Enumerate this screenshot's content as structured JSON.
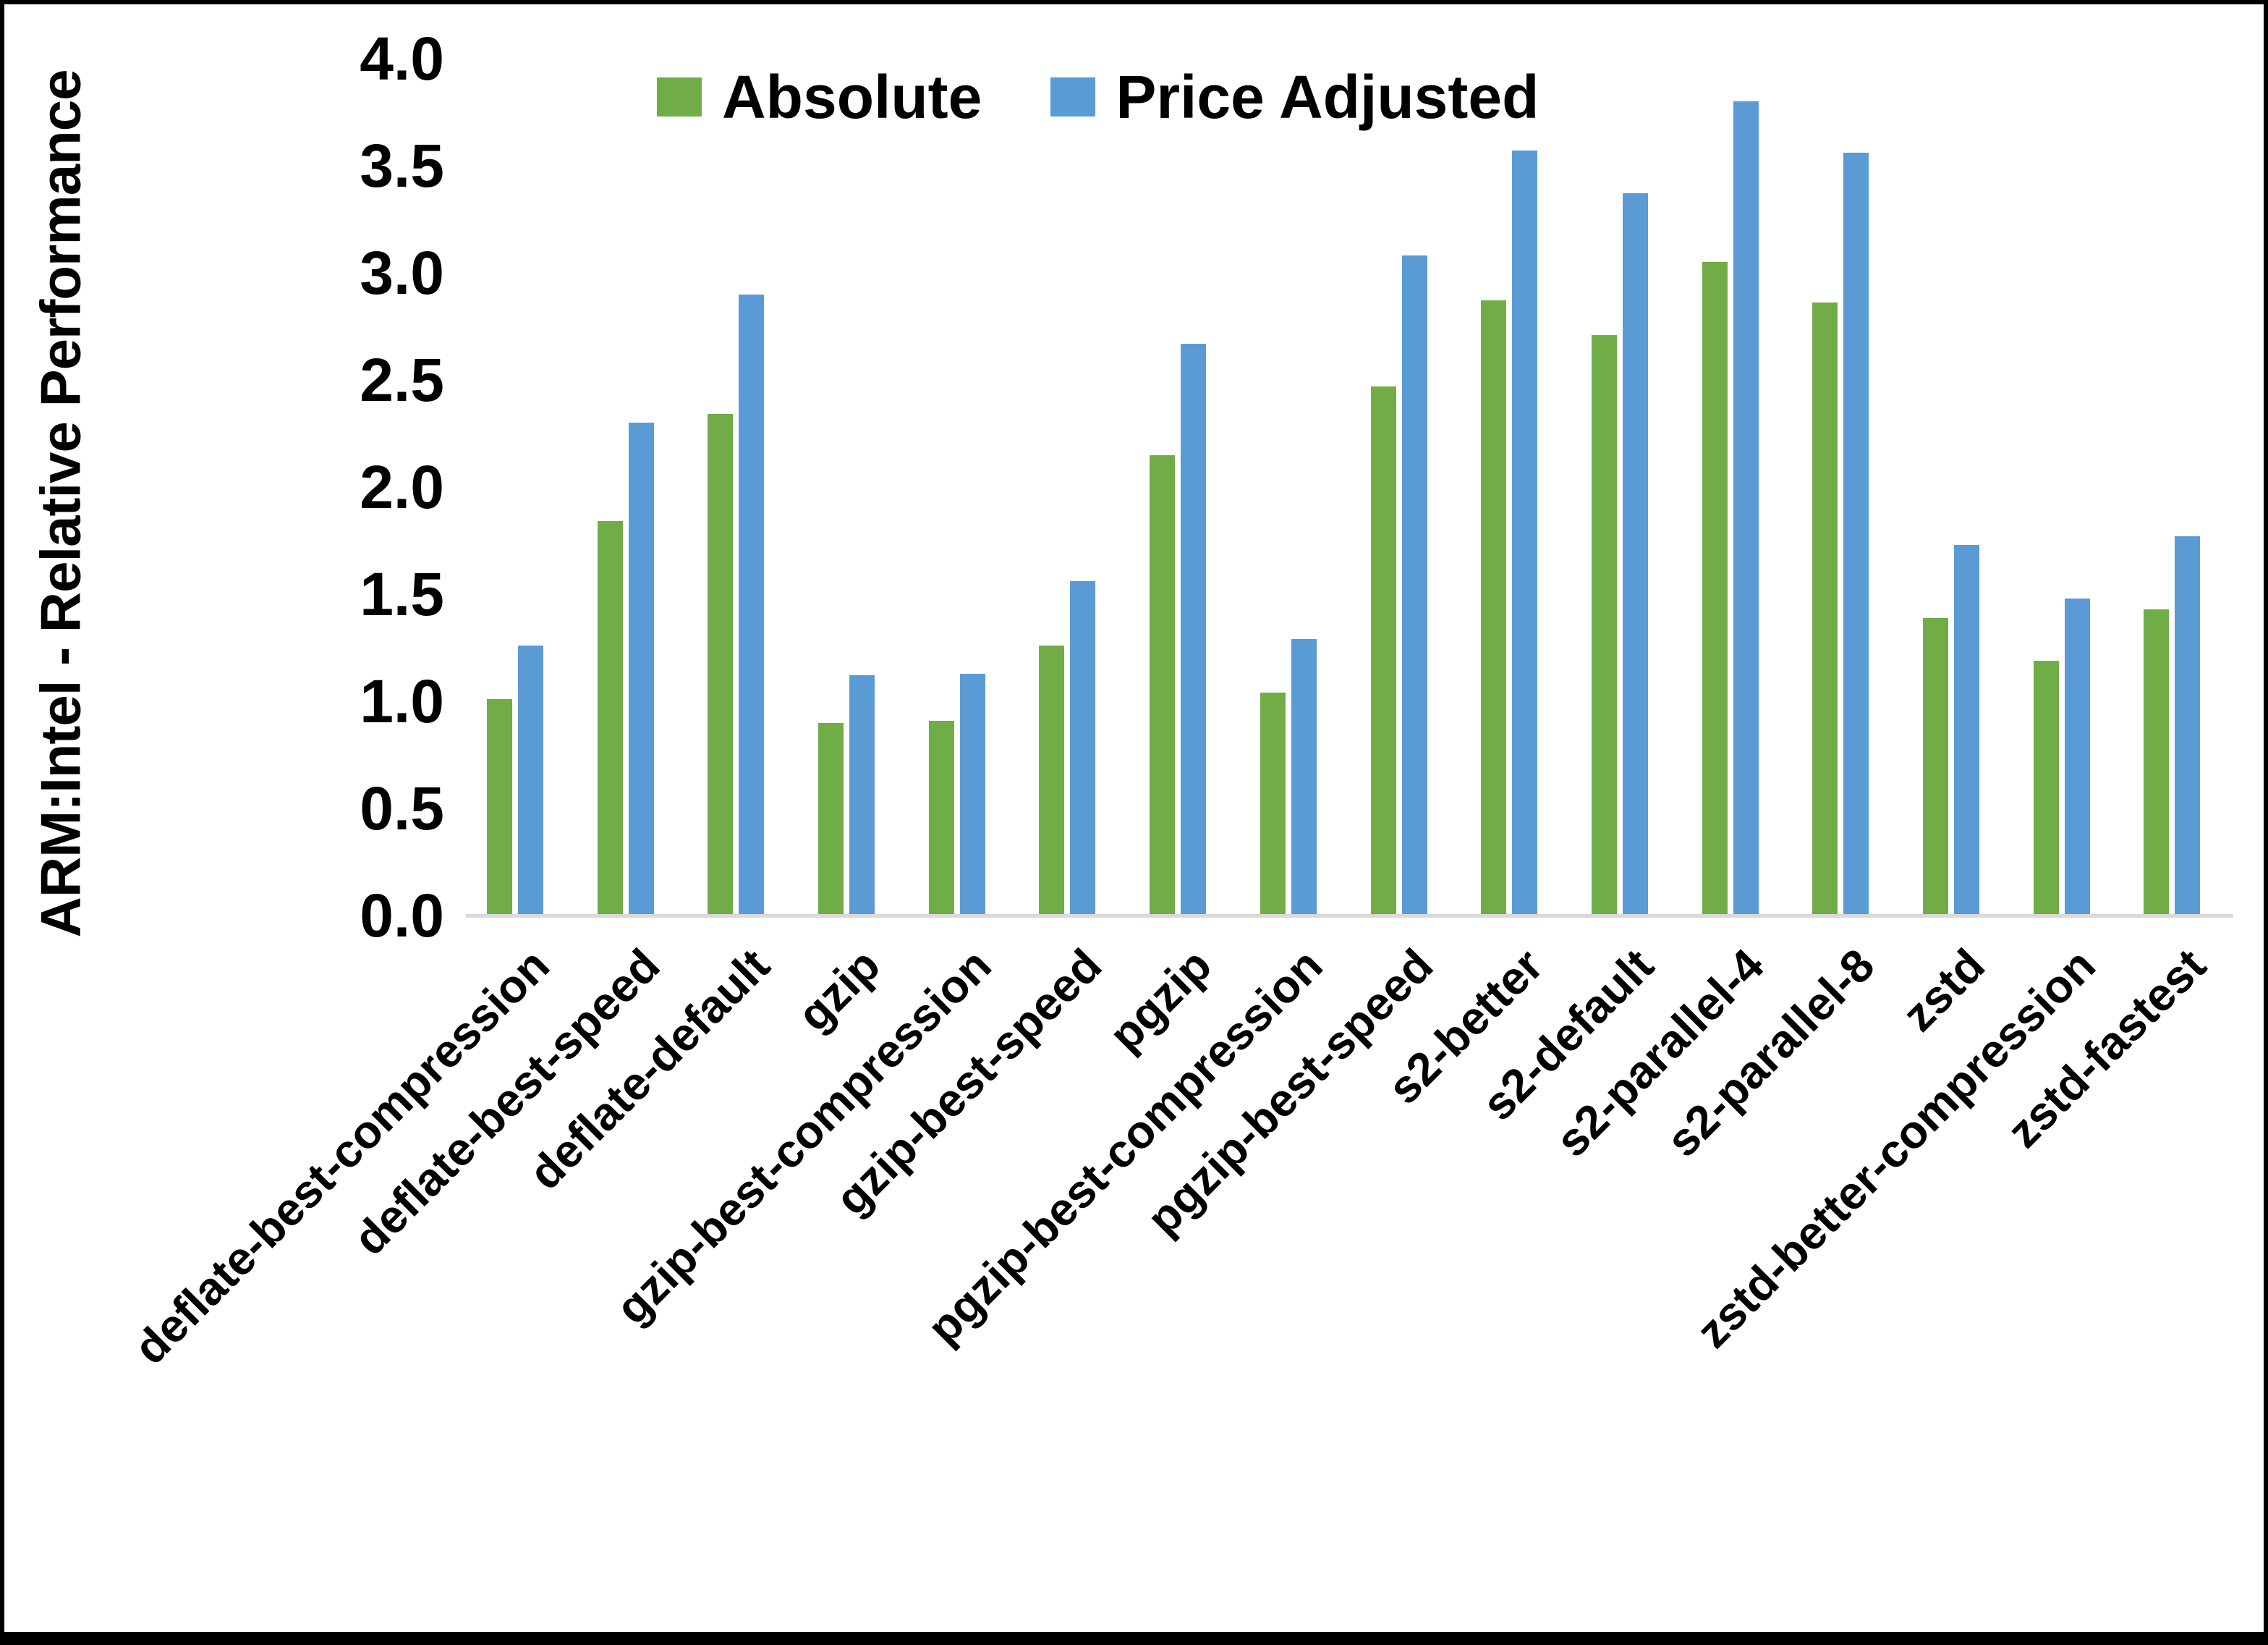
{
  "window": {
    "background": "#ffffff",
    "frame_color": "#000000"
  },
  "axes": {
    "y_title": "ARM:Intel - Relative Performance",
    "axis_line_color": "#D9D9D9",
    "text_color": "#000000"
  },
  "legend": {
    "position": "top-center",
    "items": [
      {
        "label": "Absolute",
        "color": "#70AD47"
      },
      {
        "label": "Price Adjusted",
        "color": "#5B9BD5"
      }
    ]
  },
  "chart_data": {
    "type": "bar",
    "title": "",
    "xlabel": "",
    "ylabel": "ARM:Intel - Relative Performance",
    "ylim": [
      0.0,
      4.0
    ],
    "ytick_step": 0.5,
    "ytick_labels": [
      "0.0",
      "0.5",
      "1.0",
      "1.5",
      "2.0",
      "2.5",
      "3.0",
      "3.5",
      "4.0"
    ],
    "grid": false,
    "legend_position": "top-center",
    "categories": [
      "deflate-best-compression",
      "deflate-best-speed",
      "deflate-default",
      "gzip",
      "gzip-best-compression",
      "gzip-best-speed",
      "pgzip",
      "pgzip-best-compression",
      "pgzip-best-speed",
      "s2-better",
      "s2-default",
      "s2-parallel-4",
      "s2-parallel-8",
      "zstd",
      "zstd-better-compression",
      "zstd-fastest"
    ],
    "series": [
      {
        "name": "Absolute",
        "color": "#70AD47",
        "values": [
          1.01,
          1.84,
          2.34,
          0.9,
          0.91,
          1.26,
          2.15,
          1.04,
          2.47,
          2.87,
          2.71,
          3.05,
          2.86,
          1.39,
          1.19,
          1.43
        ]
      },
      {
        "name": "Price Adjusted",
        "color": "#5B9BD5",
        "values": [
          1.26,
          2.3,
          2.9,
          1.12,
          1.13,
          1.56,
          2.67,
          1.29,
          3.08,
          3.57,
          3.37,
          3.8,
          3.56,
          1.73,
          1.48,
          1.77
        ]
      }
    ]
  }
}
